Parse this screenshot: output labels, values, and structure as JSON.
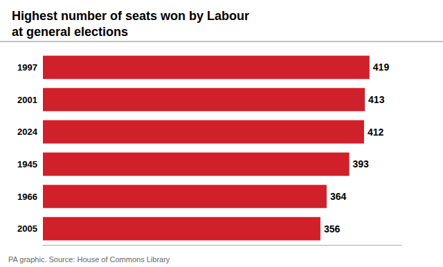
{
  "chart_data": {
    "type": "bar",
    "orientation": "horizontal",
    "title": "Highest number of seats won by Labour\nat general elections",
    "annotations": [
      "PA graphic. Source: House of Commons Library"
    ],
    "categories": [
      "1997",
      "2001",
      "2024",
      "1945",
      "1966",
      "2005"
    ],
    "values": [
      419,
      413,
      412,
      393,
      364,
      356
    ],
    "color": "#d0202a",
    "xlim": [
      0,
      460
    ],
    "data_labels": true,
    "tick_labels": "y",
    "grid": false
  }
}
